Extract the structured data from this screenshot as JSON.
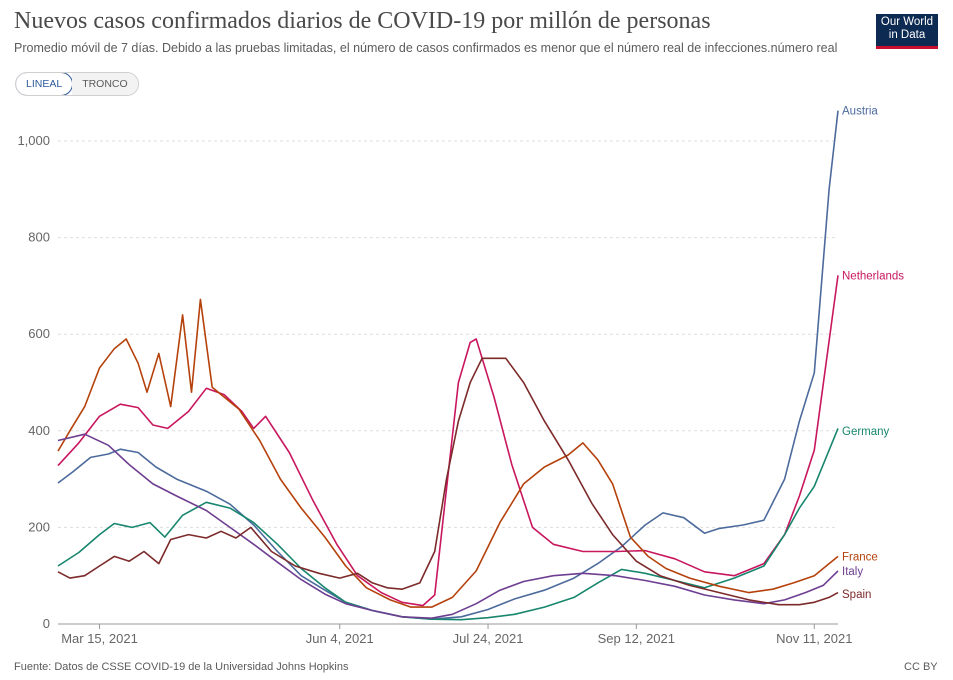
{
  "title": "Nuevos casos confirmados diarios de COVID-19 por millón de personas",
  "subtitle": "Promedio móvil de 7 días. Debido a las pruebas limitadas, el número de casos confirmados es menor que el número real de infecciones.número real",
  "logo": {
    "line1": "Our World",
    "line2": "in Data"
  },
  "toggle": {
    "linear": "LINEAL",
    "log": "TRONCO",
    "selected": "LINEAL"
  },
  "footer": {
    "source": "Fuente: Datos de CSSE COVID-19 de la Universidad Johns Hopkins",
    "license": "CC BY"
  },
  "colors": {
    "Austria": "#4c6a9c",
    "Netherlands": "#c8175e",
    "Germany": "#18866e",
    "France": "#b5420c",
    "Italy": "#6d3e91",
    "Spain": "#7c2a2a"
  },
  "chart_data": {
    "type": "line",
    "ylim": [
      0,
      1100
    ],
    "yticks": [
      0,
      200,
      400,
      600,
      800,
      1000
    ],
    "ytick_labels": [
      "0",
      "200",
      "400",
      "600",
      "800",
      "1,000"
    ],
    "x_range": [
      "2021-03-01",
      "2021-11-19"
    ],
    "xticks": [
      "2021-03-15",
      "2021-06-04",
      "2021-07-24",
      "2021-09-12",
      "2021-11-11"
    ],
    "xtick_labels": [
      "Mar 15, 2021",
      "Jun 4, 2021",
      "Jul 24, 2021",
      "Sep 12, 2021",
      "Nov 11, 2021"
    ],
    "grid": "horizontal",
    "series": [
      {
        "name": "Austria",
        "points": [
          [
            "2021-03-01",
            292
          ],
          [
            "2021-03-06",
            315
          ],
          [
            "2021-03-12",
            345
          ],
          [
            "2021-03-18",
            352
          ],
          [
            "2021-03-22",
            362
          ],
          [
            "2021-03-28",
            355
          ],
          [
            "2021-04-03",
            325
          ],
          [
            "2021-04-10",
            300
          ],
          [
            "2021-04-20",
            275
          ],
          [
            "2021-04-28",
            248
          ],
          [
            "2021-05-06",
            205
          ],
          [
            "2021-05-14",
            150
          ],
          [
            "2021-05-22",
            100
          ],
          [
            "2021-05-30",
            70
          ],
          [
            "2021-06-06",
            45
          ],
          [
            "2021-06-15",
            28
          ],
          [
            "2021-06-25",
            15
          ],
          [
            "2021-07-05",
            10
          ],
          [
            "2021-07-15",
            15
          ],
          [
            "2021-07-24",
            30
          ],
          [
            "2021-08-02",
            52
          ],
          [
            "2021-08-12",
            70
          ],
          [
            "2021-08-22",
            95
          ],
          [
            "2021-08-30",
            125
          ],
          [
            "2021-09-07",
            160
          ],
          [
            "2021-09-15",
            205
          ],
          [
            "2021-09-21",
            230
          ],
          [
            "2021-09-28",
            220
          ],
          [
            "2021-10-05",
            188
          ],
          [
            "2021-10-10",
            198
          ],
          [
            "2021-10-18",
            205
          ],
          [
            "2021-10-25",
            215
          ],
          [
            "2021-11-01",
            300
          ],
          [
            "2021-11-06",
            420
          ],
          [
            "2021-11-11",
            520
          ],
          [
            "2021-11-16",
            900
          ],
          [
            "2021-11-19",
            1063
          ]
        ]
      },
      {
        "name": "Netherlands",
        "points": [
          [
            "2021-03-01",
            328
          ],
          [
            "2021-03-08",
            375
          ],
          [
            "2021-03-15",
            430
          ],
          [
            "2021-03-22",
            455
          ],
          [
            "2021-03-28",
            448
          ],
          [
            "2021-04-02",
            412
          ],
          [
            "2021-04-07",
            405
          ],
          [
            "2021-04-14",
            440
          ],
          [
            "2021-04-20",
            488
          ],
          [
            "2021-04-26",
            475
          ],
          [
            "2021-05-02",
            440
          ],
          [
            "2021-05-06",
            405
          ],
          [
            "2021-05-10",
            430
          ],
          [
            "2021-05-18",
            355
          ],
          [
            "2021-05-26",
            255
          ],
          [
            "2021-06-03",
            165
          ],
          [
            "2021-06-10",
            100
          ],
          [
            "2021-06-18",
            65
          ],
          [
            "2021-06-25",
            45
          ],
          [
            "2021-07-02",
            38
          ],
          [
            "2021-07-06",
            60
          ],
          [
            "2021-07-10",
            280
          ],
          [
            "2021-07-14",
            500
          ],
          [
            "2021-07-18",
            583
          ],
          [
            "2021-07-20",
            590
          ],
          [
            "2021-07-26",
            470
          ],
          [
            "2021-08-01",
            330
          ],
          [
            "2021-08-08",
            200
          ],
          [
            "2021-08-15",
            165
          ],
          [
            "2021-08-25",
            150
          ],
          [
            "2021-09-05",
            150
          ],
          [
            "2021-09-15",
            152
          ],
          [
            "2021-09-25",
            135
          ],
          [
            "2021-10-05",
            108
          ],
          [
            "2021-10-15",
            100
          ],
          [
            "2021-10-25",
            125
          ],
          [
            "2021-11-01",
            185
          ],
          [
            "2021-11-06",
            265
          ],
          [
            "2021-11-11",
            360
          ],
          [
            "2021-11-19",
            722
          ]
        ]
      },
      {
        "name": "Germany",
        "points": [
          [
            "2021-03-01",
            120
          ],
          [
            "2021-03-08",
            148
          ],
          [
            "2021-03-15",
            185
          ],
          [
            "2021-03-20",
            208
          ],
          [
            "2021-03-26",
            200
          ],
          [
            "2021-04-01",
            210
          ],
          [
            "2021-04-06",
            180
          ],
          [
            "2021-04-12",
            225
          ],
          [
            "2021-04-20",
            252
          ],
          [
            "2021-04-28",
            240
          ],
          [
            "2021-05-06",
            210
          ],
          [
            "2021-05-14",
            165
          ],
          [
            "2021-05-22",
            115
          ],
          [
            "2021-05-30",
            75
          ],
          [
            "2021-06-06",
            45
          ],
          [
            "2021-06-15",
            28
          ],
          [
            "2021-06-25",
            15
          ],
          [
            "2021-07-05",
            10
          ],
          [
            "2021-07-15",
            9
          ],
          [
            "2021-07-24",
            13
          ],
          [
            "2021-08-02",
            20
          ],
          [
            "2021-08-12",
            35
          ],
          [
            "2021-08-22",
            55
          ],
          [
            "2021-08-30",
            85
          ],
          [
            "2021-09-07",
            113
          ],
          [
            "2021-09-15",
            105
          ],
          [
            "2021-09-25",
            90
          ],
          [
            "2021-10-05",
            75
          ],
          [
            "2021-10-15",
            95
          ],
          [
            "2021-10-25",
            120
          ],
          [
            "2021-11-01",
            185
          ],
          [
            "2021-11-06",
            240
          ],
          [
            "2021-11-11",
            285
          ],
          [
            "2021-11-19",
            405
          ]
        ]
      },
      {
        "name": "France",
        "points": [
          [
            "2021-03-01",
            358
          ],
          [
            "2021-03-05",
            400
          ],
          [
            "2021-03-10",
            450
          ],
          [
            "2021-03-15",
            530
          ],
          [
            "2021-03-20",
            570
          ],
          [
            "2021-03-24",
            590
          ],
          [
            "2021-03-28",
            540
          ],
          [
            "2021-03-31",
            480
          ],
          [
            "2021-04-04",
            560
          ],
          [
            "2021-04-08",
            450
          ],
          [
            "2021-04-12",
            640
          ],
          [
            "2021-04-15",
            480
          ],
          [
            "2021-04-18",
            672
          ],
          [
            "2021-04-22",
            490
          ],
          [
            "2021-05-01",
            445
          ],
          [
            "2021-05-08",
            380
          ],
          [
            "2021-05-15",
            300
          ],
          [
            "2021-05-22",
            240
          ],
          [
            "2021-05-30",
            180
          ],
          [
            "2021-06-06",
            120
          ],
          [
            "2021-06-13",
            75
          ],
          [
            "2021-06-21",
            50
          ],
          [
            "2021-06-28",
            35
          ],
          [
            "2021-07-05",
            35
          ],
          [
            "2021-07-12",
            55
          ],
          [
            "2021-07-20",
            110
          ],
          [
            "2021-07-28",
            210
          ],
          [
            "2021-08-05",
            290
          ],
          [
            "2021-08-12",
            325
          ],
          [
            "2021-08-20",
            350
          ],
          [
            "2021-08-25",
            375
          ],
          [
            "2021-08-30",
            340
          ],
          [
            "2021-09-04",
            290
          ],
          [
            "2021-09-10",
            180
          ],
          [
            "2021-09-16",
            140
          ],
          [
            "2021-09-22",
            115
          ],
          [
            "2021-09-30",
            95
          ],
          [
            "2021-10-10",
            78
          ],
          [
            "2021-10-20",
            65
          ],
          [
            "2021-10-28",
            72
          ],
          [
            "2021-11-04",
            85
          ],
          [
            "2021-11-11",
            100
          ],
          [
            "2021-11-19",
            140
          ]
        ]
      },
      {
        "name": "Italy",
        "points": [
          [
            "2021-03-01",
            380
          ],
          [
            "2021-03-10",
            393
          ],
          [
            "2021-03-18",
            370
          ],
          [
            "2021-03-25",
            330
          ],
          [
            "2021-04-02",
            290
          ],
          [
            "2021-04-10",
            265
          ],
          [
            "2021-04-20",
            235
          ],
          [
            "2021-04-28",
            200
          ],
          [
            "2021-05-06",
            165
          ],
          [
            "2021-05-14",
            128
          ],
          [
            "2021-05-22",
            92
          ],
          [
            "2021-05-30",
            62
          ],
          [
            "2021-06-06",
            42
          ],
          [
            "2021-06-15",
            28
          ],
          [
            "2021-06-25",
            15
          ],
          [
            "2021-07-05",
            12
          ],
          [
            "2021-07-12",
            20
          ],
          [
            "2021-07-20",
            42
          ],
          [
            "2021-07-28",
            70
          ],
          [
            "2021-08-05",
            88
          ],
          [
            "2021-08-15",
            100
          ],
          [
            "2021-08-25",
            105
          ],
          [
            "2021-09-05",
            100
          ],
          [
            "2021-09-15",
            90
          ],
          [
            "2021-09-25",
            78
          ],
          [
            "2021-10-05",
            60
          ],
          [
            "2021-10-15",
            50
          ],
          [
            "2021-10-25",
            42
          ],
          [
            "2021-11-01",
            50
          ],
          [
            "2021-11-08",
            65
          ],
          [
            "2021-11-14",
            80
          ],
          [
            "2021-11-19",
            110
          ]
        ]
      },
      {
        "name": "Spain",
        "points": [
          [
            "2021-03-01",
            108
          ],
          [
            "2021-03-05",
            95
          ],
          [
            "2021-03-10",
            100
          ],
          [
            "2021-03-15",
            120
          ],
          [
            "2021-03-20",
            140
          ],
          [
            "2021-03-25",
            130
          ],
          [
            "2021-03-30",
            150
          ],
          [
            "2021-04-04",
            125
          ],
          [
            "2021-04-08",
            175
          ],
          [
            "2021-04-14",
            185
          ],
          [
            "2021-04-20",
            178
          ],
          [
            "2021-04-25",
            192
          ],
          [
            "2021-04-30",
            178
          ],
          [
            "2021-05-05",
            200
          ],
          [
            "2021-05-12",
            150
          ],
          [
            "2021-05-20",
            120
          ],
          [
            "2021-05-28",
            105
          ],
          [
            "2021-06-04",
            95
          ],
          [
            "2021-06-10",
            105
          ],
          [
            "2021-06-15",
            85
          ],
          [
            "2021-06-20",
            75
          ],
          [
            "2021-06-25",
            72
          ],
          [
            "2021-07-01",
            85
          ],
          [
            "2021-07-06",
            150
          ],
          [
            "2021-07-10",
            300
          ],
          [
            "2021-07-14",
            420
          ],
          [
            "2021-07-18",
            500
          ],
          [
            "2021-07-22",
            550
          ],
          [
            "2021-07-30",
            550
          ],
          [
            "2021-08-05",
            500
          ],
          [
            "2021-08-12",
            420
          ],
          [
            "2021-08-20",
            340
          ],
          [
            "2021-08-28",
            250
          ],
          [
            "2021-09-04",
            185
          ],
          [
            "2021-09-12",
            130
          ],
          [
            "2021-09-20",
            100
          ],
          [
            "2021-09-30",
            80
          ],
          [
            "2021-10-10",
            65
          ],
          [
            "2021-10-20",
            50
          ],
          [
            "2021-10-30",
            40
          ],
          [
            "2021-11-06",
            40
          ],
          [
            "2021-11-11",
            45
          ],
          [
            "2021-11-16",
            55
          ],
          [
            "2021-11-19",
            65
          ]
        ]
      }
    ]
  }
}
